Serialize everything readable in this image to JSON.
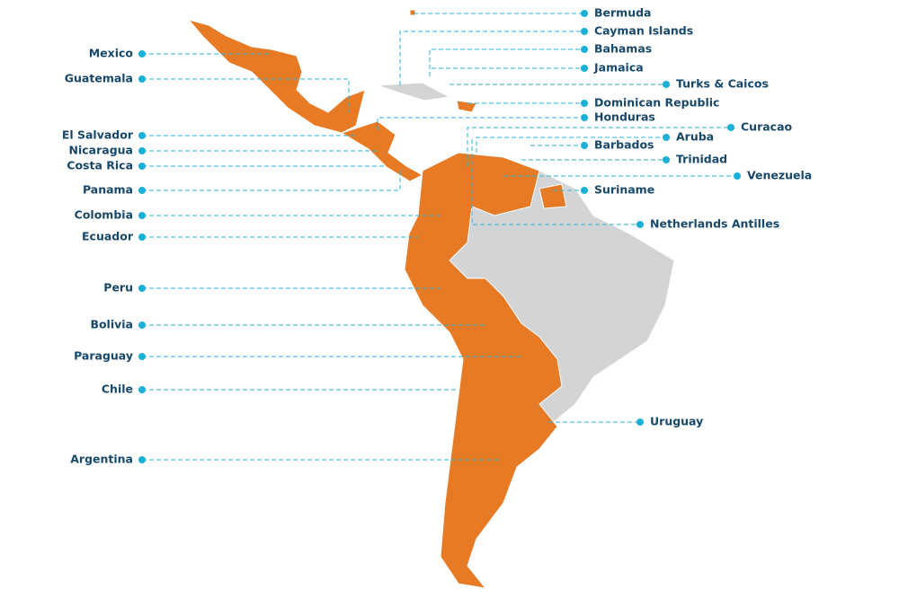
{
  "labels": [
    "Bermuda",
    "Cayman Islands",
    "Bahamas",
    "Jamaica",
    "Turks & Caicos",
    "Dominican Republic",
    "Honduras",
    "Curacao",
    "Aruba",
    "Barbados",
    "Trinidad",
    "Venezuela",
    "Suriname",
    "Netherlands Antilles",
    "Uruguay",
    "Mexico",
    "Guatemala",
    "El Salvador",
    "Nicaragua",
    "Costa Rica",
    "Panama",
    "Colombia",
    "Ecuador",
    "Peru",
    "Bolivia",
    "Paraguay",
    "Chile",
    "Argentina"
  ]
}
